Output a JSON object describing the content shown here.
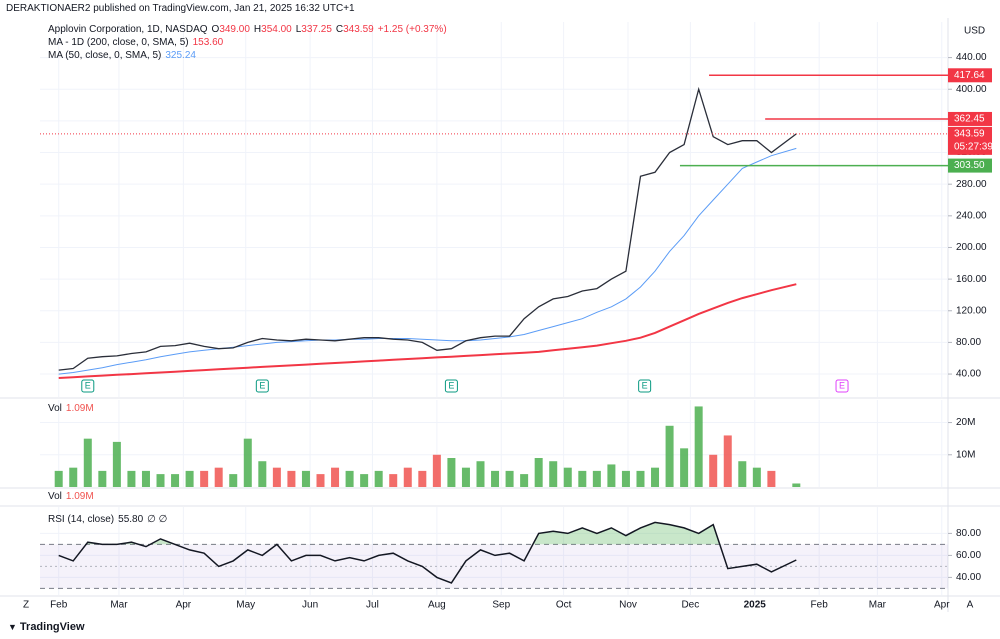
{
  "header": "DERAKTIONAER2 published on TradingView.com, Jan 21, 2025 16:32 UTC+1",
  "footer": "TradingView",
  "axis_currency": "USD",
  "controls": [
    "Z",
    "A"
  ],
  "collapsed_pane": {
    "title": "Vol",
    "value": "1.09M"
  },
  "chart_data": [
    {
      "type": "line",
      "title": "Applovin Corporation, 1D, NASDAQ",
      "ohlc": [
        {
          "label": "O",
          "value": "349.00"
        },
        {
          "label": "H",
          "value": "354.00"
        },
        {
          "label": "L",
          "value": "337.25"
        },
        {
          "label": "C",
          "value": "343.59"
        }
      ],
      "change": "+1.25 (+0.37%)",
      "countdown": "05:27:39",
      "last_color": "#f23645",
      "x": [
        0,
        7,
        14,
        21,
        28,
        35,
        42,
        49,
        56,
        63,
        70,
        77,
        84,
        91,
        98,
        105,
        112,
        119,
        126,
        133,
        140,
        147,
        154,
        161,
        168,
        175,
        182,
        189,
        196,
        203,
        210,
        217,
        224,
        231,
        238,
        245,
        252,
        259,
        266,
        273,
        280,
        287,
        294,
        301,
        308,
        315,
        322,
        329,
        336,
        343,
        355
      ],
      "xlim": [
        -9,
        428
      ],
      "ylim": [
        11,
        485
      ],
      "yticks": [
        {
          "value": 40,
          "label": "40.00"
        },
        {
          "value": 80,
          "label": "80.00"
        },
        {
          "value": 120,
          "label": "120.00"
        },
        {
          "value": 160,
          "label": "160.00"
        },
        {
          "value": 200,
          "label": "200.00"
        },
        {
          "value": 240,
          "label": "240.00"
        },
        {
          "value": 280,
          "label": "280.00"
        },
        {
          "value": 320,
          "label": "320.00"
        },
        {
          "value": 360,
          "label": "360.00"
        },
        {
          "value": 400,
          "label": "400.00"
        },
        {
          "value": 440,
          "label": "440.00"
        }
      ],
      "grid": true,
      "series": [
        {
          "color": "#2a2e39",
          "width": 1.3,
          "values": [
            45,
            47,
            60,
            62,
            63,
            66,
            68,
            75,
            76,
            79,
            75,
            72,
            73,
            80,
            85,
            83,
            82,
            84,
            83,
            82,
            84,
            86,
            86,
            84,
            83,
            80,
            70,
            72,
            82,
            86,
            88,
            88,
            110,
            125,
            135,
            138,
            145,
            148,
            160,
            170,
            290,
            295,
            320,
            330,
            400,
            340,
            330,
            335,
            335,
            320,
            343.59
          ]
        },
        {
          "name": "MA - 1D (200, close, 0, SMA, 5)",
          "legend_value": "153.60",
          "color": "#f23645",
          "width": 2,
          "values": [
            35,
            36,
            37,
            38,
            39,
            40,
            41,
            42,
            43,
            44,
            45,
            46,
            47,
            48,
            49,
            50,
            51,
            52,
            53,
            54,
            55,
            56,
            57,
            58,
            59,
            60,
            61,
            62,
            63,
            64,
            65,
            66,
            67,
            68,
            70,
            72,
            74,
            76,
            79,
            82,
            86,
            92,
            100,
            108,
            116,
            123,
            130,
            136,
            141,
            146,
            153.6
          ]
        },
        {
          "name": "MA (50, close, 0, SMA, 5)",
          "legend_value": "325.24",
          "color": "#5b9cf6",
          "width": 1,
          "values": [
            40,
            42,
            45,
            48,
            52,
            55,
            58,
            62,
            65,
            68,
            70,
            72,
            74,
            76,
            78,
            80,
            81,
            82,
            83,
            83,
            84,
            84,
            85,
            85,
            85,
            84,
            83,
            82,
            82,
            83,
            85,
            87,
            90,
            95,
            100,
            105,
            110,
            118,
            125,
            135,
            150,
            170,
            195,
            215,
            240,
            260,
            280,
            300,
            308,
            316,
            325.24
          ]
        }
      ],
      "levels": [
        {
          "value": 417.64,
          "x": 313,
          "color": "#f23645"
        },
        {
          "value": 362.45,
          "x": 340,
          "color": "#f23645"
        },
        {
          "value": 303.5,
          "value_label": "303.50",
          "x": 299,
          "color": "#4caf50"
        }
      ],
      "events": [
        {
          "x": 14,
          "label": "E",
          "color": "#089981"
        },
        {
          "x": 98,
          "label": "E",
          "color": "#089981"
        },
        {
          "x": 189,
          "label": "E",
          "color": "#089981"
        },
        {
          "x": 282,
          "label": "E",
          "color": "#089981"
        },
        {
          "x": 377,
          "label": "E",
          "color": "#e040fb"
        }
      ]
    },
    {
      "type": "bar",
      "title": "Vol",
      "legend_value": "1.09M",
      "up_color": "#4caf50",
      "down_color": "#f05350",
      "x": [
        0,
        7,
        14,
        21,
        28,
        35,
        42,
        49,
        56,
        63,
        70,
        77,
        84,
        91,
        98,
        105,
        112,
        119,
        126,
        133,
        140,
        147,
        154,
        161,
        168,
        175,
        182,
        189,
        196,
        203,
        210,
        217,
        224,
        231,
        238,
        245,
        252,
        259,
        266,
        273,
        280,
        287,
        294,
        301,
        308,
        315,
        322,
        329,
        336,
        343,
        355
      ],
      "xlim": [
        -9,
        428
      ],
      "ylim": [
        0,
        27
      ],
      "yticks": [
        {
          "value": 10,
          "label": "10M"
        },
        {
          "value": 20,
          "label": "20M"
        }
      ],
      "values": [
        5,
        6,
        15,
        5,
        14,
        5,
        5,
        4,
        4,
        5,
        5,
        6,
        4,
        15,
        8,
        6,
        5,
        5,
        4,
        6,
        5,
        4,
        5,
        4,
        6,
        5,
        10,
        9,
        6,
        8,
        5,
        5,
        4,
        9,
        8,
        6,
        5,
        5,
        7,
        5,
        5,
        6,
        19,
        12,
        25,
        10,
        16,
        8,
        6,
        5,
        1.09
      ]
    },
    {
      "type": "line",
      "title": "RSI (14, close)",
      "legend_value": "55.80",
      "legend_extra": "∅ ∅",
      "color": "#131722",
      "band_color": "#7e57c2",
      "overbought_color": "#4caf50",
      "band_upper": 70,
      "band_middle": 50,
      "band_lower": 30,
      "x": [
        0,
        7,
        14,
        21,
        28,
        35,
        42,
        49,
        56,
        63,
        70,
        77,
        84,
        91,
        98,
        105,
        112,
        119,
        126,
        133,
        140,
        147,
        154,
        161,
        168,
        175,
        182,
        189,
        196,
        203,
        210,
        217,
        224,
        231,
        238,
        245,
        252,
        259,
        266,
        273,
        280,
        287,
        294,
        301,
        308,
        315,
        322,
        329,
        336,
        343,
        355
      ],
      "xlim": [
        -9,
        428
      ],
      "ylim": [
        24,
        104
      ],
      "yticks": [
        {
          "value": 40,
          "label": "40.00"
        },
        {
          "value": 60,
          "label": "60.00"
        },
        {
          "value": 80,
          "label": "80.00"
        }
      ],
      "xticks": [
        {
          "value": 0,
          "label": "Feb"
        },
        {
          "value": 29,
          "label": "Mar"
        },
        {
          "value": 60,
          "label": "Apr"
        },
        {
          "value": 90,
          "label": "May"
        },
        {
          "value": 121,
          "label": "Jun"
        },
        {
          "value": 151,
          "label": "Jul"
        },
        {
          "value": 182,
          "label": "Aug"
        },
        {
          "value": 213,
          "label": "Sep"
        },
        {
          "value": 243,
          "label": "Oct"
        },
        {
          "value": 274,
          "label": "Nov"
        },
        {
          "value": 304,
          "label": "Dec"
        },
        {
          "value": 335,
          "label": "2025"
        },
        {
          "value": 366,
          "label": "Feb"
        },
        {
          "value": 394,
          "label": "Mar"
        },
        {
          "value": 425,
          "label": "Apr"
        }
      ],
      "values": [
        60,
        55,
        72,
        70,
        70,
        72,
        68,
        75,
        70,
        65,
        62,
        50,
        55,
        65,
        60,
        70,
        55,
        60,
        60,
        55,
        58,
        55,
        60,
        62,
        55,
        50,
        40,
        35,
        55,
        65,
        60,
        62,
        55,
        80,
        82,
        80,
        85,
        80,
        85,
        78,
        85,
        90,
        88,
        85,
        80,
        88,
        48,
        50,
        52,
        45,
        55.8
      ]
    }
  ]
}
